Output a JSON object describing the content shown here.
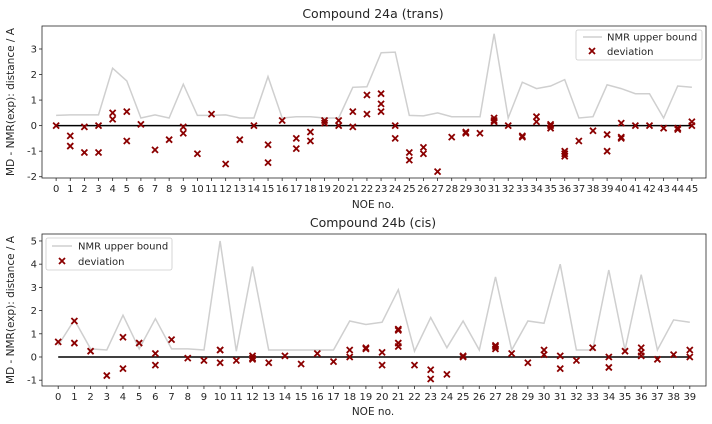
{
  "chart_data": [
    {
      "type": "line+scatter",
      "title": "Compound 24a (trans)",
      "xlabel": "NOE no.",
      "ylabel": "MD - NMR(exp): distance / A",
      "xlim": [
        -1,
        46
      ],
      "ylim": [
        -2.05,
        3.9
      ],
      "yticks": [
        -2,
        -1,
        0,
        1,
        2,
        3
      ],
      "xticks": [
        0,
        1,
        2,
        3,
        4,
        5,
        6,
        7,
        8,
        9,
        10,
        11,
        12,
        13,
        14,
        15,
        16,
        17,
        18,
        19,
        20,
        21,
        22,
        23,
        24,
        25,
        26,
        27,
        28,
        29,
        30,
        31,
        32,
        33,
        34,
        35,
        36,
        37,
        38,
        39,
        40,
        41,
        42,
        43,
        44,
        45
      ],
      "grid": false,
      "legend": {
        "position": "top-right",
        "entries": [
          "NMR upper bound",
          "deviation"
        ]
      },
      "colors": {
        "upper_bound": "#cfcfcf",
        "deviation": "#8b0000",
        "zero_line": "#000000"
      },
      "series": [
        {
          "name": "NMR upper bound",
          "kind": "line",
          "values": [
            0.4,
            0.42,
            0.42,
            0.42,
            2.25,
            1.75,
            0.3,
            0.42,
            0.3,
            1.62,
            0.4,
            0.4,
            0.42,
            0.3,
            0.3,
            1.92,
            0.3,
            0.35,
            0.35,
            0.3,
            0.3,
            1.5,
            1.52,
            2.85,
            2.88,
            0.4,
            0.38,
            0.5,
            0.35,
            0.35,
            0.35,
            3.6,
            0.3,
            1.7,
            1.45,
            1.55,
            1.8,
            0.3,
            0.35,
            1.6,
            1.45,
            1.25,
            1.25,
            0.3,
            1.55,
            1.5
          ]
        },
        {
          "name": "deviation",
          "kind": "scatter",
          "points": [
            [
              0,
              0.0
            ],
            [
              1,
              -0.4
            ],
            [
              1,
              -0.8
            ],
            [
              2,
              -1.05
            ],
            [
              2,
              -0.05
            ],
            [
              3,
              -1.05
            ],
            [
              3,
              0.0
            ],
            [
              4,
              0.25
            ],
            [
              4,
              0.5
            ],
            [
              5,
              0.55
            ],
            [
              5,
              -0.6
            ],
            [
              6,
              0.05
            ],
            [
              7,
              -0.95
            ],
            [
              8,
              -0.55
            ],
            [
              9,
              -0.3
            ],
            [
              9,
              -0.05
            ],
            [
              10,
              -1.1
            ],
            [
              11,
              0.45
            ],
            [
              12,
              -1.5
            ],
            [
              13,
              -0.55
            ],
            [
              14,
              0.0
            ],
            [
              15,
              -0.75
            ],
            [
              15,
              -1.45
            ],
            [
              16,
              0.2
            ],
            [
              17,
              -0.5
            ],
            [
              17,
              -0.9
            ],
            [
              18,
              -0.25
            ],
            [
              18,
              -0.6
            ],
            [
              19,
              0.2
            ],
            [
              19,
              0.1
            ],
            [
              20,
              0.0
            ],
            [
              20,
              0.2
            ],
            [
              21,
              0.55
            ],
            [
              21,
              -0.05
            ],
            [
              22,
              1.2
            ],
            [
              22,
              0.45
            ],
            [
              23,
              1.25
            ],
            [
              23,
              0.85
            ],
            [
              23,
              0.55
            ],
            [
              24,
              0.0
            ],
            [
              24,
              -0.5
            ],
            [
              25,
              -1.05
            ],
            [
              25,
              -1.35
            ],
            [
              26,
              -0.85
            ],
            [
              26,
              -1.1
            ],
            [
              27,
              -1.8
            ],
            [
              28,
              -0.45
            ],
            [
              29,
              -0.3
            ],
            [
              29,
              -0.25
            ],
            [
              30,
              -0.3
            ],
            [
              31,
              0.3
            ],
            [
              31,
              0.2
            ],
            [
              31,
              0.15
            ],
            [
              32,
              0.0
            ],
            [
              33,
              -0.45
            ],
            [
              33,
              -0.4
            ],
            [
              34,
              0.35
            ],
            [
              34,
              0.15
            ],
            [
              35,
              0.05
            ],
            [
              35,
              -0.1
            ],
            [
              35,
              0.0
            ],
            [
              36,
              -1.0
            ],
            [
              36,
              -1.1
            ],
            [
              36,
              -1.2
            ],
            [
              37,
              -0.6
            ],
            [
              38,
              -0.2
            ],
            [
              39,
              -0.35
            ],
            [
              39,
              -1.0
            ],
            [
              40,
              0.1
            ],
            [
              40,
              -0.45
            ],
            [
              40,
              -0.5
            ],
            [
              41,
              0.0
            ],
            [
              42,
              0.0
            ],
            [
              43,
              -0.1
            ],
            [
              44,
              -0.1
            ],
            [
              44,
              -0.15
            ],
            [
              45,
              0.15
            ],
            [
              45,
              0.0
            ]
          ]
        }
      ]
    },
    {
      "type": "line+scatter",
      "title": "Compound 24b (cis)",
      "xlabel": "NOE no.",
      "ylabel": "MD - NMR(exp): distance / A",
      "xlim": [
        -1,
        40
      ],
      "ylim": [
        -1.25,
        5.3
      ],
      "yticks": [
        -1,
        0,
        1,
        2,
        3,
        4,
        5
      ],
      "xticks": [
        0,
        1,
        2,
        3,
        4,
        5,
        6,
        7,
        8,
        9,
        10,
        11,
        12,
        13,
        14,
        15,
        16,
        17,
        18,
        19,
        20,
        21,
        22,
        23,
        24,
        25,
        26,
        27,
        28,
        29,
        30,
        31,
        32,
        33,
        34,
        35,
        36,
        37,
        38,
        39
      ],
      "grid": false,
      "legend": {
        "position": "top-left",
        "entries": [
          "NMR upper bound",
          "deviation"
        ]
      },
      "colors": {
        "upper_bound": "#cfcfcf",
        "deviation": "#8b0000",
        "zero_line": "#000000"
      },
      "series": [
        {
          "name": "NMR upper bound",
          "kind": "line",
          "values": [
            0.5,
            1.6,
            0.35,
            0.3,
            1.8,
            0.35,
            1.65,
            0.35,
            0.35,
            0.3,
            5.0,
            0.25,
            3.9,
            0.3,
            0.3,
            0.3,
            0.3,
            0.3,
            1.55,
            1.4,
            1.5,
            2.9,
            0.25,
            1.7,
            0.4,
            1.55,
            0.3,
            3.45,
            0.3,
            1.55,
            1.45,
            4.0,
            0.3,
            0.3,
            3.75,
            0.3,
            3.55,
            0.3,
            1.6,
            1.5
          ]
        },
        {
          "name": "deviation",
          "kind": "scatter",
          "points": [
            [
              0,
              0.65
            ],
            [
              1,
              1.55
            ],
            [
              1,
              0.6
            ],
            [
              2,
              0.25
            ],
            [
              3,
              -0.8
            ],
            [
              4,
              0.85
            ],
            [
              4,
              -0.5
            ],
            [
              5,
              0.6
            ],
            [
              6,
              0.15
            ],
            [
              6,
              -0.35
            ],
            [
              7,
              0.75
            ],
            [
              8,
              -0.05
            ],
            [
              9,
              -0.15
            ],
            [
              10,
              0.3
            ],
            [
              10,
              0.3
            ],
            [
              10,
              -0.25
            ],
            [
              11,
              -0.15
            ],
            [
              12,
              0.05
            ],
            [
              12,
              -0.05
            ],
            [
              12,
              -0.1
            ],
            [
              13,
              -0.25
            ],
            [
              14,
              0.05
            ],
            [
              15,
              -0.3
            ],
            [
              16,
              0.15
            ],
            [
              17,
              -0.2
            ],
            [
              18,
              0.3
            ],
            [
              18,
              0.0
            ],
            [
              19,
              0.4
            ],
            [
              19,
              0.35
            ],
            [
              20,
              0.2
            ],
            [
              20,
              -0.35
            ],
            [
              21,
              1.2
            ],
            [
              21,
              1.15
            ],
            [
              21,
              0.6
            ],
            [
              21,
              0.45
            ],
            [
              22,
              -0.35
            ],
            [
              23,
              -0.55
            ],
            [
              23,
              -0.95
            ],
            [
              24,
              -0.75
            ],
            [
              25,
              0.0
            ],
            [
              25,
              0.05
            ],
            [
              27,
              0.5
            ],
            [
              27,
              0.45
            ],
            [
              27,
              0.35
            ],
            [
              28,
              0.15
            ],
            [
              29,
              -0.25
            ],
            [
              30,
              0.3
            ],
            [
              30,
              0.1
            ],
            [
              31,
              0.05
            ],
            [
              31,
              -0.5
            ],
            [
              32,
              -0.15
            ],
            [
              33,
              0.4
            ],
            [
              34,
              0.0
            ],
            [
              34,
              -0.45
            ],
            [
              35,
              0.25
            ],
            [
              36,
              0.4
            ],
            [
              36,
              0.2
            ],
            [
              36,
              0.05
            ],
            [
              37,
              -0.1
            ],
            [
              38,
              0.1
            ],
            [
              39,
              0.3
            ],
            [
              39,
              0.0
            ]
          ]
        }
      ]
    }
  ]
}
